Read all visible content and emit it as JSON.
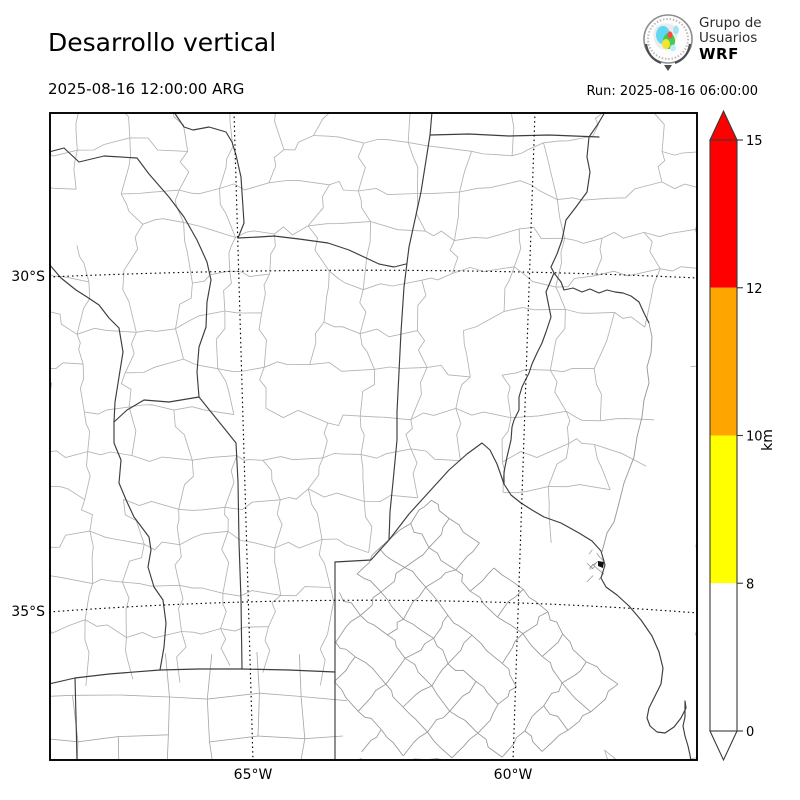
{
  "header": {
    "title": "Desarrollo vertical",
    "valid_time": "2025-08-16 12:00:00 ARG",
    "run_label": "Run: 2025-08-16 06:00:00",
    "logo": {
      "line1": "Grupo de",
      "line2": "Usuarios",
      "line3": "WRF"
    }
  },
  "map": {
    "lat_labels": [
      "30°S",
      "35°S"
    ],
    "lon_labels": [
      "65°W",
      "60°W"
    ]
  },
  "colorbar": {
    "unit": "km",
    "ticks": [
      "15",
      "12",
      "10",
      "8",
      "0"
    ],
    "boundaries": [
      0,
      8,
      10,
      12,
      15
    ],
    "segment_colors": [
      "#ffffff",
      "#ffff00",
      "#ffa500",
      "#ff0000"
    ],
    "over_color": "#ff0000",
    "under_color": "#ffffff"
  }
}
